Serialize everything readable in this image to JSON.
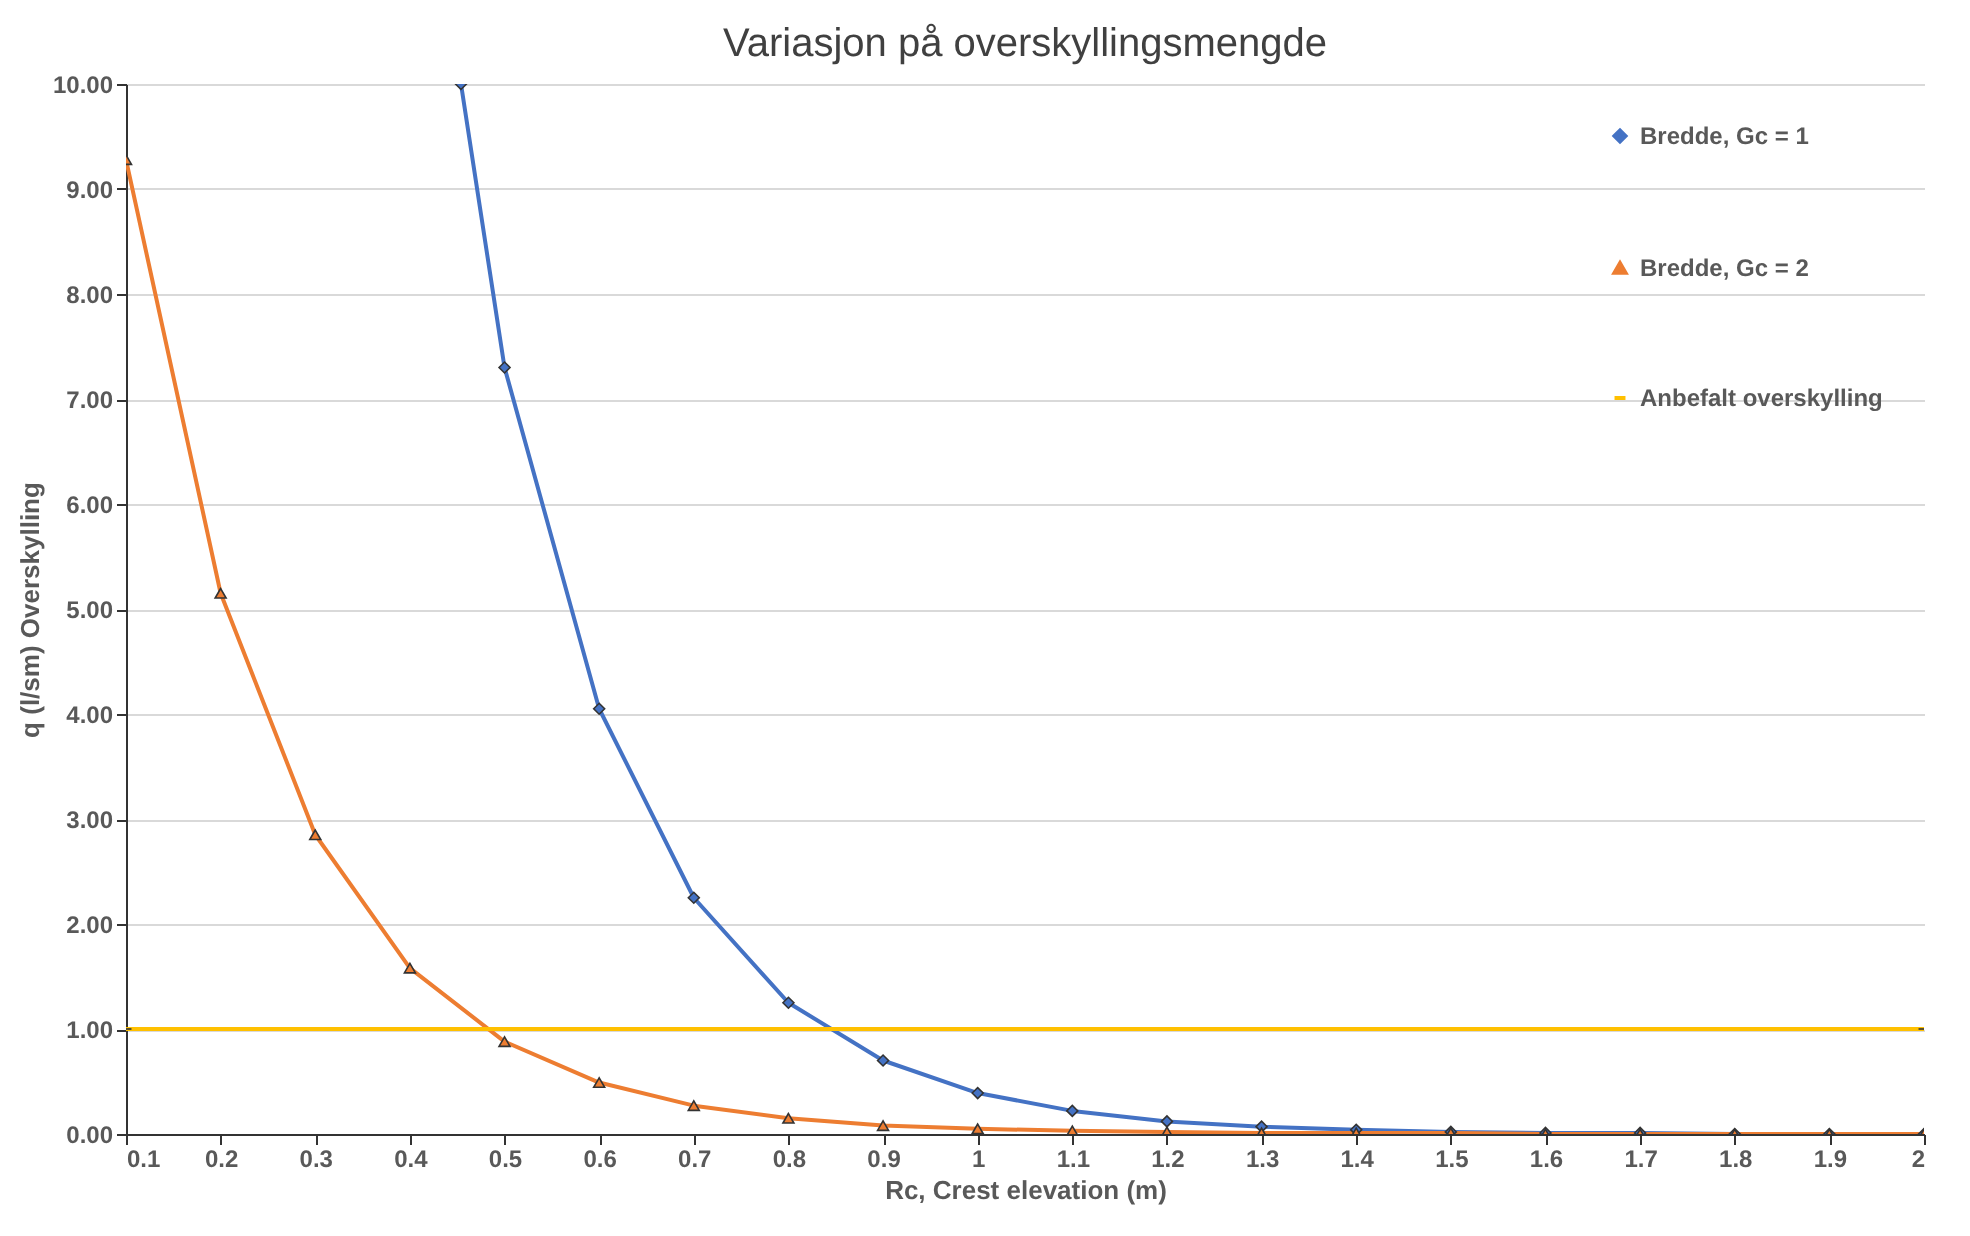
{
  "chart_data": {
    "type": "line",
    "title": "Variasjon på overskyllingsmengde",
    "xlabel": "Rc, Crest elevation (m)",
    "ylabel": "q (l/sm) Overskylling",
    "xlim": [
      0.1,
      2
    ],
    "xticks": [
      0.1,
      0.2,
      0.3,
      0.4,
      0.5,
      0.6,
      0.7,
      0.8,
      0.9,
      1,
      1.1,
      1.2,
      1.3,
      1.4,
      1.5,
      1.6,
      1.7,
      1.8,
      1.9,
      2
    ],
    "ylim": [
      0,
      10
    ],
    "yticks": [
      {
        "value": 0,
        "label": "0.00"
      },
      {
        "value": 1,
        "label": "1.00"
      },
      {
        "value": 2,
        "label": "2.00"
      },
      {
        "value": 3,
        "label": "3.00"
      },
      {
        "value": 4,
        "label": "4.00"
      },
      {
        "value": 5,
        "label": "5.00"
      },
      {
        "value": 6,
        "label": "6.00"
      },
      {
        "value": 7,
        "label": "7.00"
      },
      {
        "value": 8,
        "label": "8.00"
      },
      {
        "value": 9,
        "label": "9.00"
      },
      {
        "value": 10,
        "label": "10.00"
      }
    ],
    "grid": "y",
    "legend": "top right",
    "series": [
      {
        "name": "Bredde, Gc = 1",
        "color": "#4472c4",
        "marker": "diamond",
        "x": [
          0.454,
          0.5,
          0.6,
          0.7,
          0.8,
          0.9,
          1,
          1.1,
          1.2,
          1.3,
          1.4,
          1.5,
          1.6,
          1.7,
          1.8,
          1.9,
          2
        ],
        "values": [
          10,
          7.3,
          4.05,
          2.25,
          1.25,
          0.7,
          0.39,
          0.22,
          0.12,
          0.07,
          0.04,
          0.02,
          0.01,
          0.01,
          0,
          0,
          0
        ]
      },
      {
        "name": "Bredde, Gc = 2",
        "color": "#ed7d31",
        "marker": "triangle",
        "x": [
          0.1,
          0.2,
          0.3,
          0.4,
          0.5,
          0.6,
          0.7,
          0.8,
          0.9,
          1,
          1.1,
          1.2,
          1.3,
          1.4,
          1.5,
          1.6,
          1.7,
          1.8,
          1.9,
          2
        ],
        "values": [
          9.28,
          5.15,
          2.85,
          1.58,
          0.88,
          0.49,
          0.27,
          0.15,
          0.08,
          0.05,
          0.03,
          0.02,
          0.01,
          0.01,
          0.01,
          0,
          0,
          0,
          0,
          0
        ]
      },
      {
        "name": "Anbefalt overskylling",
        "color": "#ffc000",
        "marker": "none",
        "x": [
          0.1,
          2
        ],
        "values": [
          1,
          1
        ]
      }
    ]
  }
}
